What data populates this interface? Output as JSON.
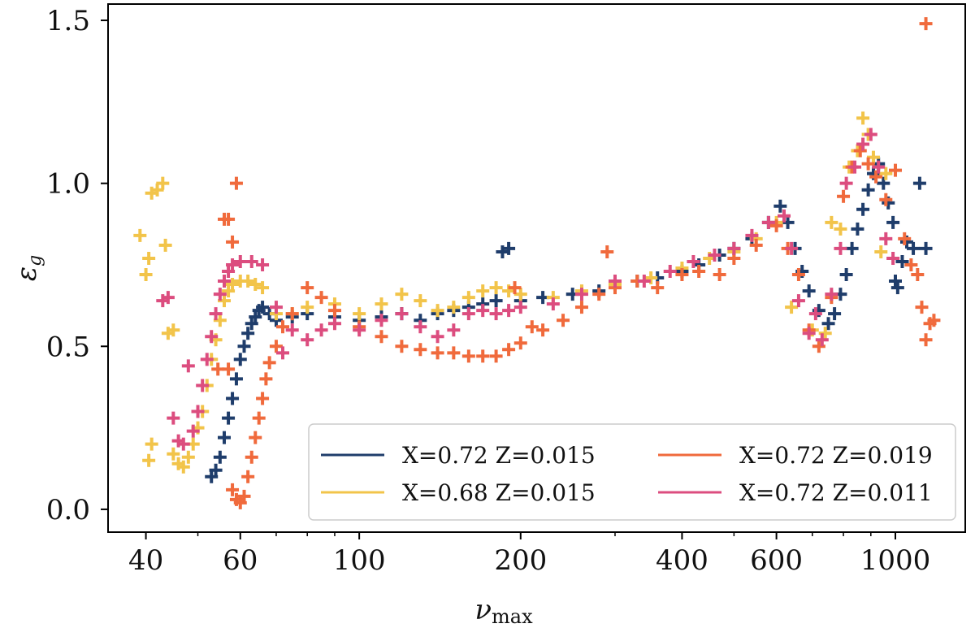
{
  "chart_data": {
    "type": "scatter",
    "marker": "plus",
    "xscale": "log",
    "xlabel": "ν_max",
    "xlabel_main": "ν",
    "xlabel_sub": "max",
    "ylabel": "ε_g",
    "ylabel_main": "ε",
    "ylabel_sub": "g",
    "xlim": [
      34,
      1350
    ],
    "ylim": [
      -0.07,
      1.55
    ],
    "xticks": [
      40,
      60,
      100,
      200,
      400,
      600,
      1000
    ],
    "xtick_labels": [
      "40",
      "60",
      "100",
      "200",
      "400",
      "600",
      "1000"
    ],
    "yticks": [
      0.0,
      0.5,
      1.0,
      1.5
    ],
    "ytick_labels": [
      "0.0",
      "0.5",
      "1.0",
      "1.5"
    ],
    "legend_position": "lower-right",
    "series": [
      {
        "name": "X=0.72 Z=0.015",
        "color": "#1f3d6b",
        "points": [
          [
            53,
            0.1
          ],
          [
            54,
            0.12
          ],
          [
            55,
            0.16
          ],
          [
            56,
            0.22
          ],
          [
            57,
            0.28
          ],
          [
            58,
            0.34
          ],
          [
            59,
            0.4
          ],
          [
            60,
            0.46
          ],
          [
            61,
            0.5
          ],
          [
            62,
            0.54
          ],
          [
            63,
            0.57
          ],
          [
            64,
            0.59
          ],
          [
            65,
            0.61
          ],
          [
            66,
            0.62
          ],
          [
            68,
            0.6
          ],
          [
            70,
            0.58
          ],
          [
            75,
            0.59
          ],
          [
            80,
            0.6
          ],
          [
            90,
            0.59
          ],
          [
            100,
            0.58
          ],
          [
            110,
            0.59
          ],
          [
            120,
            0.6
          ],
          [
            130,
            0.58
          ],
          [
            140,
            0.6
          ],
          [
            150,
            0.61
          ],
          [
            160,
            0.62
          ],
          [
            170,
            0.63
          ],
          [
            180,
            0.64
          ],
          [
            185,
            0.79
          ],
          [
            190,
            0.8
          ],
          [
            200,
            0.64
          ],
          [
            220,
            0.65
          ],
          [
            250,
            0.66
          ],
          [
            280,
            0.67
          ],
          [
            300,
            0.69
          ],
          [
            330,
            0.7
          ],
          [
            360,
            0.71
          ],
          [
            400,
            0.73
          ],
          [
            430,
            0.75
          ],
          [
            470,
            0.78
          ],
          [
            500,
            0.8
          ],
          [
            540,
            0.83
          ],
          [
            580,
            0.88
          ],
          [
            610,
            0.93
          ],
          [
            630,
            0.88
          ],
          [
            650,
            0.8
          ],
          [
            670,
            0.73
          ],
          [
            690,
            0.67
          ],
          [
            720,
            0.61
          ],
          [
            750,
            0.57
          ],
          [
            770,
            0.6
          ],
          [
            790,
            0.66
          ],
          [
            810,
            0.72
          ],
          [
            830,
            0.8
          ],
          [
            850,
            0.86
          ],
          [
            870,
            0.92
          ],
          [
            890,
            0.98
          ],
          [
            910,
            1.03
          ],
          [
            930,
            1.06
          ],
          [
            950,
            1.0
          ],
          [
            970,
            0.94
          ],
          [
            990,
            0.88
          ],
          [
            1000,
            0.7
          ],
          [
            1010,
            0.68
          ],
          [
            1030,
            0.76
          ],
          [
            1050,
            0.82
          ],
          [
            1080,
            0.8
          ],
          [
            1110,
            1.0
          ],
          [
            1140,
            0.8
          ]
        ]
      },
      {
        "name": "X=0.68 Z=0.015",
        "color": "#f2c44a",
        "points": [
          [
            39,
            0.84
          ],
          [
            40,
            0.72
          ],
          [
            40.5,
            0.77
          ],
          [
            41,
            0.97
          ],
          [
            42,
            0.98
          ],
          [
            43,
            1.0
          ],
          [
            43.5,
            0.81
          ],
          [
            44,
            0.54
          ],
          [
            45,
            0.55
          ],
          [
            40.5,
            0.15
          ],
          [
            41,
            0.2
          ],
          [
            45,
            0.17
          ],
          [
            46,
            0.14
          ],
          [
            47,
            0.13
          ],
          [
            48,
            0.16
          ],
          [
            49,
            0.2
          ],
          [
            50,
            0.25
          ],
          [
            51,
            0.3
          ],
          [
            52,
            0.38
          ],
          [
            53,
            0.46
          ],
          [
            54,
            0.52
          ],
          [
            55,
            0.58
          ],
          [
            56,
            0.64
          ],
          [
            57,
            0.67
          ],
          [
            58,
            0.69
          ],
          [
            60,
            0.7
          ],
          [
            62,
            0.7
          ],
          [
            64,
            0.69
          ],
          [
            66,
            0.68
          ],
          [
            70,
            0.6
          ],
          [
            75,
            0.6
          ],
          [
            80,
            0.62
          ],
          [
            90,
            0.63
          ],
          [
            100,
            0.6
          ],
          [
            110,
            0.63
          ],
          [
            120,
            0.66
          ],
          [
            130,
            0.64
          ],
          [
            140,
            0.61
          ],
          [
            150,
            0.62
          ],
          [
            160,
            0.65
          ],
          [
            170,
            0.67
          ],
          [
            180,
            0.68
          ],
          [
            190,
            0.67
          ],
          [
            200,
            0.66
          ],
          [
            230,
            0.65
          ],
          [
            260,
            0.67
          ],
          [
            300,
            0.69
          ],
          [
            350,
            0.71
          ],
          [
            400,
            0.74
          ],
          [
            450,
            0.77
          ],
          [
            500,
            0.79
          ],
          [
            550,
            0.83
          ],
          [
            600,
            0.88
          ],
          [
            640,
            0.62
          ],
          [
            700,
            0.55
          ],
          [
            740,
            0.54
          ],
          [
            760,
            0.88
          ],
          [
            790,
            0.86
          ],
          [
            820,
            1.05
          ],
          [
            850,
            1.1
          ],
          [
            870,
            1.2
          ],
          [
            890,
            1.15
          ],
          [
            910,
            1.08
          ],
          [
            940,
            0.79
          ],
          [
            960,
            1.03
          ]
        ]
      },
      {
        "name": "X=0.72 Z=0.019",
        "color": "#f06a3c",
        "points": [
          [
            56,
            0.89
          ],
          [
            57,
            0.89
          ],
          [
            58,
            0.82
          ],
          [
            59,
            1.0
          ],
          [
            54.5,
            0.43
          ],
          [
            57,
            0.43
          ],
          [
            58,
            0.06
          ],
          [
            59,
            0.03
          ],
          [
            60,
            0.02
          ],
          [
            61,
            0.04
          ],
          [
            62,
            0.1
          ],
          [
            63,
            0.16
          ],
          [
            64,
            0.22
          ],
          [
            65,
            0.28
          ],
          [
            66,
            0.34
          ],
          [
            67,
            0.4
          ],
          [
            68,
            0.45
          ],
          [
            70,
            0.5
          ],
          [
            72,
            0.56
          ],
          [
            75,
            0.6
          ],
          [
            80,
            0.68
          ],
          [
            85,
            0.65
          ],
          [
            90,
            0.61
          ],
          [
            100,
            0.56
          ],
          [
            110,
            0.53
          ],
          [
            120,
            0.5
          ],
          [
            130,
            0.49
          ],
          [
            140,
            0.48
          ],
          [
            150,
            0.48
          ],
          [
            160,
            0.47
          ],
          [
            170,
            0.47
          ],
          [
            180,
            0.47
          ],
          [
            190,
            0.49
          ],
          [
            195,
            0.68
          ],
          [
            200,
            0.51
          ],
          [
            210,
            0.56
          ],
          [
            220,
            0.55
          ],
          [
            240,
            0.58
          ],
          [
            260,
            0.62
          ],
          [
            280,
            0.66
          ],
          [
            290,
            0.79
          ],
          [
            300,
            0.68
          ],
          [
            330,
            0.7
          ],
          [
            360,
            0.68
          ],
          [
            400,
            0.72
          ],
          [
            430,
            0.73
          ],
          [
            470,
            0.72
          ],
          [
            500,
            0.77
          ],
          [
            550,
            0.81
          ],
          [
            600,
            0.87
          ],
          [
            630,
            0.8
          ],
          [
            660,
            0.72
          ],
          [
            690,
            0.55
          ],
          [
            720,
            0.5
          ],
          [
            760,
            0.65
          ],
          [
            800,
            0.96
          ],
          [
            830,
            1.05
          ],
          [
            860,
            1.1
          ],
          [
            890,
            1.06
          ],
          [
            920,
            1.02
          ],
          [
            960,
            0.95
          ],
          [
            1000,
            1.04
          ],
          [
            1040,
            0.83
          ],
          [
            1070,
            0.75
          ],
          [
            1100,
            0.72
          ],
          [
            1120,
            0.62
          ],
          [
            1140,
            0.52
          ],
          [
            1160,
            0.57
          ],
          [
            1180,
            0.58
          ],
          [
            1140,
            1.49
          ]
        ]
      },
      {
        "name": "X=0.72 Z=0.011",
        "color": "#dc4d7f",
        "points": [
          [
            43,
            0.64
          ],
          [
            44,
            0.65
          ],
          [
            45,
            0.28
          ],
          [
            46,
            0.21
          ],
          [
            47,
            0.2
          ],
          [
            48,
            0.44
          ],
          [
            49,
            0.24
          ],
          [
            50,
            0.3
          ],
          [
            51,
            0.38
          ],
          [
            52,
            0.46
          ],
          [
            53,
            0.53
          ],
          [
            54,
            0.6
          ],
          [
            55,
            0.66
          ],
          [
            56,
            0.7
          ],
          [
            57,
            0.73
          ],
          [
            58,
            0.75
          ],
          [
            60,
            0.76
          ],
          [
            63,
            0.76
          ],
          [
            66,
            0.75
          ],
          [
            70,
            0.62
          ],
          [
            72,
            0.48
          ],
          [
            75,
            0.55
          ],
          [
            80,
            0.52
          ],
          [
            85,
            0.55
          ],
          [
            90,
            0.57
          ],
          [
            100,
            0.55
          ],
          [
            110,
            0.58
          ],
          [
            120,
            0.6
          ],
          [
            130,
            0.56
          ],
          [
            140,
            0.53
          ],
          [
            150,
            0.55
          ],
          [
            160,
            0.6
          ],
          [
            170,
            0.61
          ],
          [
            180,
            0.6
          ],
          [
            190,
            0.61
          ],
          [
            200,
            0.62
          ],
          [
            230,
            0.63
          ],
          [
            260,
            0.66
          ],
          [
            300,
            0.7
          ],
          [
            340,
            0.7
          ],
          [
            380,
            0.73
          ],
          [
            420,
            0.76
          ],
          [
            460,
            0.78
          ],
          [
            500,
            0.8
          ],
          [
            540,
            0.84
          ],
          [
            580,
            0.88
          ],
          [
            620,
            0.9
          ],
          [
            640,
            0.8
          ],
          [
            660,
            0.64
          ],
          [
            690,
            0.54
          ],
          [
            710,
            0.6
          ],
          [
            730,
            0.52
          ],
          [
            760,
            0.66
          ],
          [
            790,
            0.8
          ],
          [
            810,
            1.0
          ],
          [
            840,
            1.05
          ],
          [
            870,
            1.12
          ],
          [
            900,
            1.15
          ],
          [
            930,
            1.05
          ],
          [
            960,
            0.83
          ],
          [
            990,
            0.77
          ]
        ]
      }
    ]
  }
}
